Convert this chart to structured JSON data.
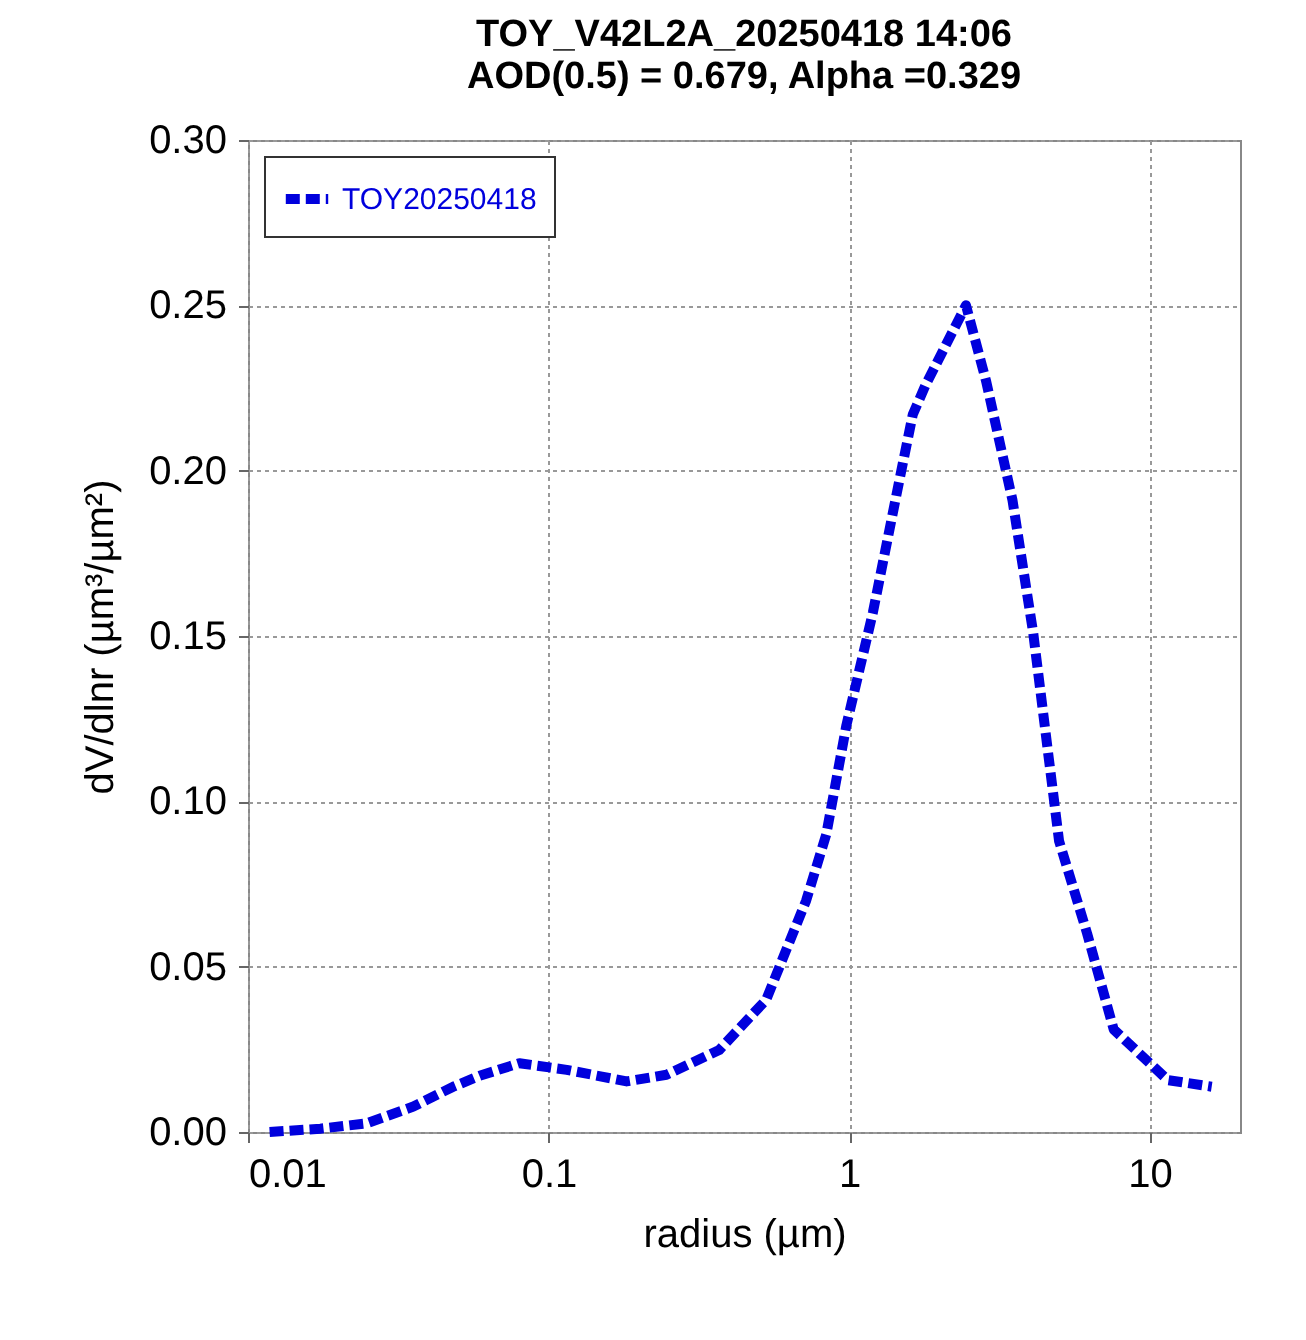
{
  "chart_data": {
    "type": "line",
    "title": "TOY_V42L2A_20250418 14:06",
    "subtitle": "AOD(0.5) = 0.679, Alpha =0.329",
    "xlabel": "radius (µm)",
    "ylabel": "dV/dlnr (µm³/µm²)",
    "log": "x",
    "xlim": [
      0.01,
      20
    ],
    "xticks": [
      0.01,
      0.1,
      1,
      10
    ],
    "ylim": [
      0,
      0.3
    ],
    "yticks": [
      {
        "value": 0,
        "label": "0.00"
      },
      0.05,
      {
        "value": 0.1,
        "label": "0.10"
      },
      0.15,
      {
        "value": 0.2,
        "label": "0.20"
      },
      0.25,
      {
        "value": 0.3,
        "label": "0.30"
      }
    ],
    "grid": true,
    "legend": "top left",
    "line_style": "dashed",
    "marker": "none",
    "series": [
      {
        "name": "TOY20250418",
        "color": "#0000dd",
        "x": [
          0.0118,
          0.0174,
          0.0248,
          0.0355,
          0.0482,
          0.059,
          0.08,
          0.115,
          0.182,
          0.247,
          0.37,
          0.53,
          0.72,
          0.84,
          0.98,
          1.2,
          1.47,
          1.63,
          1.8,
          2.45,
          2.86,
          3.5,
          4.1,
          5.0,
          6.2,
          7.6,
          11.5,
          16.1
        ],
        "values": [
          0.0,
          0.001,
          0.0026,
          0.0077,
          0.0137,
          0.017,
          0.0208,
          0.0188,
          0.0153,
          0.0173,
          0.0248,
          0.04,
          0.07,
          0.09,
          0.123,
          0.157,
          0.197,
          0.217,
          0.226,
          0.25,
          0.227,
          0.191,
          0.151,
          0.088,
          0.06,
          0.031,
          0.0157,
          0.0137
        ]
      }
    ]
  }
}
